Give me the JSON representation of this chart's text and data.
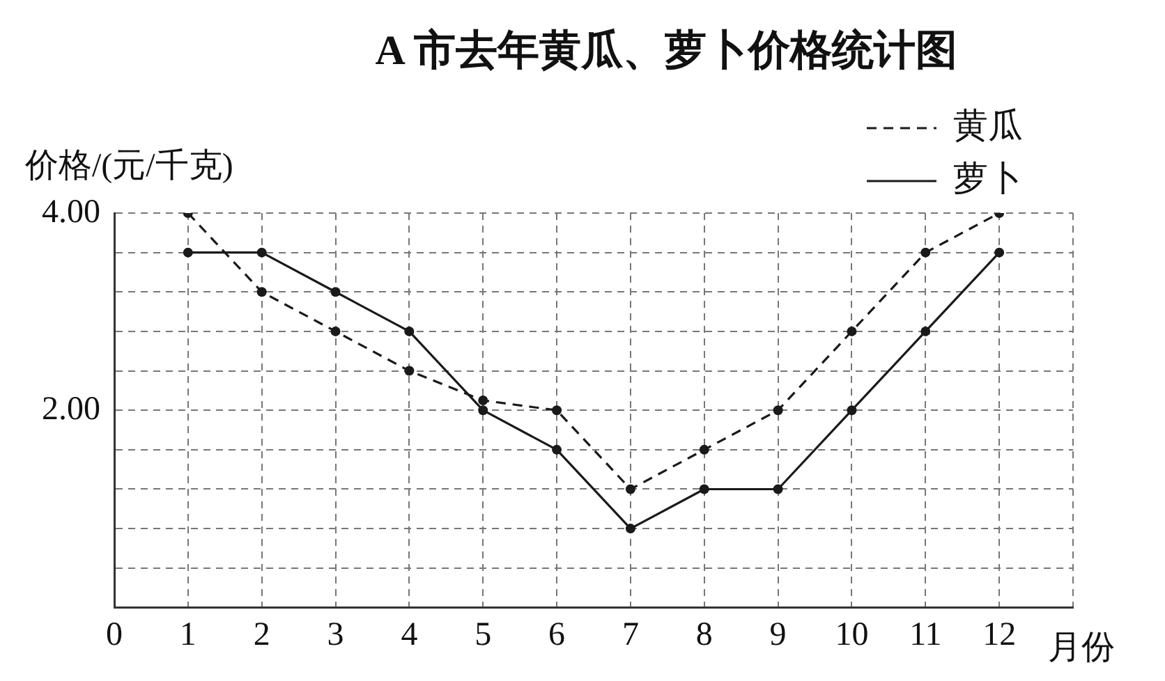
{
  "chart_data": {
    "type": "line",
    "title": "A 市去年黄瓜、萝卜价格统计图",
    "xlabel": "月份",
    "ylabel": "价格/(元/千克)",
    "x": [
      1,
      2,
      3,
      4,
      5,
      6,
      7,
      8,
      9,
      10,
      11,
      12
    ],
    "series": [
      {
        "name": "黄瓜",
        "color": "#1a1a1a",
        "line_style": "dashed",
        "values": [
          4.0,
          3.2,
          2.8,
          2.4,
          2.1,
          2.0,
          1.2,
          1.6,
          2.0,
          2.8,
          3.6,
          4.0
        ]
      },
      {
        "name": "萝卜",
        "color": "#1a1a1a",
        "line_style": "solid",
        "values": [
          3.6,
          3.6,
          3.2,
          2.8,
          2.0,
          1.6,
          0.8,
          1.2,
          1.2,
          2.0,
          2.8,
          3.6
        ]
      }
    ],
    "xlim": [
      0,
      13
    ],
    "xticks": [
      0,
      1,
      2,
      3,
      4,
      5,
      6,
      7,
      8,
      9,
      10,
      11,
      12,
      {
        "value": 13,
        "label": null
      }
    ],
    "ylim": [
      0,
      4
    ],
    "yticks": [
      {
        "value": 0,
        "label": null
      },
      {
        "value": 0.4,
        "label": null
      },
      {
        "value": 0.8,
        "label": null
      },
      {
        "value": 1.2,
        "label": null
      },
      {
        "value": 1.6,
        "label": null
      },
      {
        "value": 2,
        "label": "2.00"
      },
      {
        "value": 2.4,
        "label": null
      },
      {
        "value": 2.8,
        "label": null
      },
      {
        "value": 3.2,
        "label": null
      },
      {
        "value": 3.6,
        "label": null
      },
      {
        "value": 4,
        "label": "4.00"
      }
    ],
    "grid": true,
    "legend": "top right",
    "marker": "circle"
  }
}
